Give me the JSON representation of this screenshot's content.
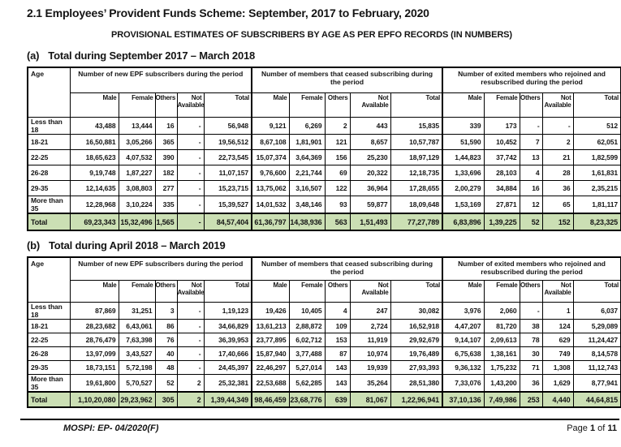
{
  "page": {
    "title": "2.1 Employees’ Provident Funds Scheme: September, 2017 to February, 2020",
    "subtitle": "PROVISIONAL ESTIMATES OF SUBSCRIBERS BY AGE AS PER EPFO RECORDS (IN NUMBERS)"
  },
  "table_header": {
    "age_label": "Age",
    "groups": [
      "Number of new EPF subscribers during the period",
      "Number of members that ceased subscribing during the period",
      "Number of exited members who rejoined and resubscribed during the period"
    ],
    "sub_labels": [
      "Male",
      "Female",
      "Others",
      "Not Available",
      "Total"
    ]
  },
  "total_row_color": "#cbdfb4",
  "tables": [
    {
      "heading_label": "(a)",
      "heading_text": "Total during September 2017 – March 2018",
      "rows": [
        {
          "age": "Less than 18",
          "values": [
            "43,488",
            "13,444",
            "16",
            "-",
            "56,948",
            "9,121",
            "6,269",
            "2",
            "443",
            "15,835",
            "339",
            "173",
            "-",
            "-",
            "512"
          ]
        },
        {
          "age": "18-21",
          "values": [
            "16,50,881",
            "3,05,266",
            "365",
            "-",
            "19,56,512",
            "8,67,108",
            "1,81,901",
            "121",
            "8,657",
            "10,57,787",
            "51,590",
            "10,452",
            "7",
            "2",
            "62,051"
          ]
        },
        {
          "age": "22-25",
          "values": [
            "18,65,623",
            "4,07,532",
            "390",
            "-",
            "22,73,545",
            "15,07,374",
            "3,64,369",
            "156",
            "25,230",
            "18,97,129",
            "1,44,823",
            "37,742",
            "13",
            "21",
            "1,82,599"
          ]
        },
        {
          "age": "26-28",
          "values": [
            "9,19,748",
            "1,87,227",
            "182",
            "-",
            "11,07,157",
            "9,76,600",
            "2,21,744",
            "69",
            "20,322",
            "12,18,735",
            "1,33,696",
            "28,103",
            "4",
            "28",
            "1,61,831"
          ]
        },
        {
          "age": "29-35",
          "values": [
            "12,14,635",
            "3,08,803",
            "277",
            "-",
            "15,23,715",
            "13,75,062",
            "3,16,507",
            "122",
            "36,964",
            "17,28,655",
            "2,00,279",
            "34,884",
            "16",
            "36",
            "2,35,215"
          ]
        },
        {
          "age": "More than 35",
          "values": [
            "12,28,968",
            "3,10,224",
            "335",
            "-",
            "15,39,527",
            "14,01,532",
            "3,48,146",
            "93",
            "59,877",
            "18,09,648",
            "1,53,169",
            "27,871",
            "12",
            "65",
            "1,81,117"
          ]
        }
      ],
      "total_row": {
        "age": "Total",
        "values": [
          "69,23,343",
          "15,32,496",
          "1,565",
          "-",
          "84,57,404",
          "61,36,797",
          "14,38,936",
          "563",
          "1,51,493",
          "77,27,789",
          "6,83,896",
          "1,39,225",
          "52",
          "152",
          "8,23,325"
        ]
      }
    },
    {
      "heading_label": "(b)",
      "heading_text": "Total during April 2018 – March 2019",
      "rows": [
        {
          "age": "Less than 18",
          "values": [
            "87,869",
            "31,251",
            "3",
            "-",
            "1,19,123",
            "19,426",
            "10,405",
            "4",
            "247",
            "30,082",
            "3,976",
            "2,060",
            "-",
            "1",
            "6,037"
          ]
        },
        {
          "age": "18-21",
          "values": [
            "28,23,682",
            "6,43,061",
            "86",
            "-",
            "34,66,829",
            "13,61,213",
            "2,88,872",
            "109",
            "2,724",
            "16,52,918",
            "4,47,207",
            "81,720",
            "38",
            "124",
            "5,29,089"
          ]
        },
        {
          "age": "22-25",
          "values": [
            "28,76,479",
            "7,63,398",
            "76",
            "-",
            "36,39,953",
            "23,77,895",
            "6,02,712",
            "153",
            "11,919",
            "29,92,679",
            "9,14,107",
            "2,09,613",
            "78",
            "629",
            "11,24,427"
          ]
        },
        {
          "age": "26-28",
          "values": [
            "13,97,099",
            "3,43,527",
            "40",
            "-",
            "17,40,666",
            "15,87,940",
            "3,77,488",
            "87",
            "10,974",
            "19,76,489",
            "6,75,638",
            "1,38,161",
            "30",
            "749",
            "8,14,578"
          ]
        },
        {
          "age": "29-35",
          "values": [
            "18,73,151",
            "5,72,198",
            "48",
            "-",
            "24,45,397",
            "22,46,297",
            "5,27,014",
            "143",
            "19,939",
            "27,93,393",
            "9,36,132",
            "1,75,232",
            "71",
            "1,308",
            "11,12,743"
          ]
        },
        {
          "age": "More than 35",
          "values": [
            "19,61,800",
            "5,70,527",
            "52",
            "2",
            "25,32,381",
            "22,53,688",
            "5,62,285",
            "143",
            "35,264",
            "28,51,380",
            "7,33,076",
            "1,43,200",
            "36",
            "1,629",
            "8,77,941"
          ]
        }
      ],
      "total_row": {
        "age": "Total",
        "values": [
          "1,10,20,080",
          "29,23,962",
          "305",
          "2",
          "1,39,44,349",
          "98,46,459",
          "23,68,776",
          "639",
          "81,067",
          "1,22,96,941",
          "37,10,136",
          "7,49,986",
          "253",
          "4,440",
          "44,64,815"
        ]
      }
    }
  ],
  "footer": {
    "doc_id": "MOSPI: EP- 04/2020(F)",
    "page_text_parts": [
      {
        "text": "Page ",
        "bold": false
      },
      {
        "text": "1",
        "bold": true
      },
      {
        "text": " of ",
        "bold": false
      },
      {
        "text": "11",
        "bold": true
      }
    ]
  }
}
